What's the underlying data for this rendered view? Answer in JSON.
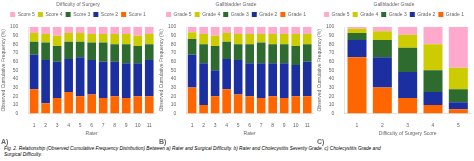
{
  "title": "Fig. 2.  Relationship (Observed Cumulative Frequency Distribution) Between a) Rater and Surgical Difficulty. b) Rater and Cholecystitis Severity Grade. c) Cholecystitis Grade and\nSurgical Difficulty.",
  "chart_data": [
    {
      "type": "bar",
      "title": "A)",
      "xlabel": "Rater",
      "ylabel": "Observed Cumulative Frequency (%)",
      "legend_title": "Difficulty of Surgery",
      "legend": "top",
      "stacked": true,
      "grid": false,
      "categories": [
        "1",
        "2",
        "3",
        "4",
        "5",
        "6",
        "7",
        "8",
        "9",
        "10",
        "11"
      ],
      "ylim": [
        0,
        100
      ],
      "yticks": [
        0,
        10,
        20,
        30,
        40,
        50,
        60,
        70,
        80,
        90,
        100
      ],
      "series": [
        {
          "name": "Score 1",
          "color": "#FF6600",
          "values": [
            28,
            12,
            18,
            25,
            20,
            22,
            18,
            20,
            18,
            20,
            20
          ]
        },
        {
          "name": "Score 2",
          "color": "#1C2FA0",
          "values": [
            40,
            50,
            42,
            38,
            45,
            40,
            42,
            40,
            40,
            38,
            42
          ]
        },
        {
          "name": "Score 3",
          "color": "#2E6B2E",
          "values": [
            15,
            20,
            18,
            20,
            18,
            20,
            22,
            20,
            22,
            20,
            18
          ]
        },
        {
          "name": "Score 4",
          "color": "#CCCC00",
          "values": [
            10,
            10,
            12,
            10,
            10,
            10,
            10,
            12,
            12,
            12,
            12
          ]
        },
        {
          "name": "Score 5",
          "color": "#FFAACC",
          "values": [
            7,
            8,
            10,
            7,
            7,
            8,
            8,
            8,
            8,
            10,
            8
          ]
        }
      ]
    },
    {
      "type": "bar",
      "title": "B)",
      "xlabel": "Rater",
      "ylabel": "Observed Cumulative Frequency (%)",
      "legend_title": "Gallbladder Grade",
      "legend": "top",
      "stacked": true,
      "grid": false,
      "categories": [
        "1",
        "2",
        "3",
        "4",
        "5",
        "6",
        "7",
        "8",
        "9",
        "10",
        "11"
      ],
      "ylim": [
        0,
        100
      ],
      "yticks": [
        0,
        10,
        20,
        30,
        40,
        50,
        60,
        70,
        80,
        90,
        100
      ],
      "series": [
        {
          "name": "Grade 1",
          "color": "#FF6600",
          "values": [
            30,
            10,
            20,
            28,
            22,
            20,
            18,
            20,
            18,
            20,
            20
          ]
        },
        {
          "name": "Grade 2",
          "color": "#1C2FA0",
          "values": [
            38,
            48,
            30,
            35,
            40,
            38,
            40,
            38,
            40,
            36,
            40
          ]
        },
        {
          "name": "Grade 3",
          "color": "#2E6B2E",
          "values": [
            18,
            22,
            28,
            20,
            18,
            22,
            24,
            22,
            22,
            22,
            20
          ]
        },
        {
          "name": "Grade 4",
          "color": "#CCCC00",
          "values": [
            8,
            12,
            12,
            10,
            12,
            12,
            10,
            12,
            12,
            14,
            12
          ]
        },
        {
          "name": "Grade 5",
          "color": "#FFAACC",
          "values": [
            6,
            8,
            10,
            7,
            8,
            8,
            8,
            8,
            8,
            8,
            8
          ]
        }
      ]
    },
    {
      "type": "bar",
      "title": "C)",
      "xlabel": "Difficulty of Surgery Score",
      "ylabel": "Observed Cumulative Frequency (%)",
      "legend_title": "Gallbladder Grade",
      "legend": "top",
      "stacked": true,
      "grid": false,
      "categories": [
        "1",
        "2",
        "3",
        "4",
        "5"
      ],
      "ylim": [
        0,
        100
      ],
      "yticks": [
        0,
        10,
        20,
        30,
        40,
        50,
        60,
        70,
        80,
        90,
        100
      ],
      "series": [
        {
          "name": "Grade 1",
          "color": "#FF6600",
          "values": [
            65,
            30,
            18,
            10,
            5
          ]
        },
        {
          "name": "Grade 2",
          "color": "#1C2FA0",
          "values": [
            20,
            35,
            30,
            15,
            8
          ]
        },
        {
          "name": "Grade 3",
          "color": "#2E6B2E",
          "values": [
            8,
            20,
            28,
            25,
            15
          ]
        },
        {
          "name": "Grade 4",
          "color": "#CCCC00",
          "values": [
            5,
            10,
            15,
            30,
            25
          ]
        },
        {
          "name": "Grade 5",
          "color": "#FFAACC",
          "values": [
            2,
            5,
            9,
            20,
            47
          ]
        }
      ]
    }
  ]
}
